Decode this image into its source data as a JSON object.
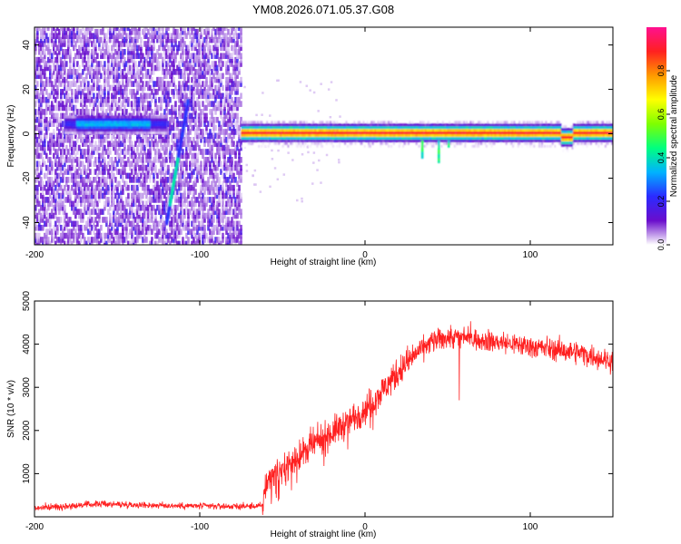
{
  "figure": {
    "title": "YM08.2026.071.05.37.G08"
  },
  "chart_data": [
    {
      "type": "heatmap",
      "xlabel": "Height of straight line (km)",
      "ylabel": "Frequency (Hz)",
      "xlim": [
        -200,
        150
      ],
      "ylim": [
        -50,
        48
      ],
      "xticks": [
        -200,
        -100,
        0,
        100
      ],
      "yticks": [
        -40,
        -20,
        0,
        20,
        40
      ],
      "colorbar": {
        "label": "Normalized spectral amplitude",
        "range": [
          0,
          1
        ],
        "ticks": [
          0.0,
          0.2,
          0.4,
          0.6,
          0.8
        ],
        "colormap": [
          "#ffffff",
          "#6a0dcc",
          "#2b2bff",
          "#00b2ff",
          "#00ff80",
          "#7fff00",
          "#ffff00",
          "#ff9900",
          "#ff2020",
          "#ff1090"
        ]
      },
      "features": [
        {
          "x_range": [
            -200,
            -75
          ],
          "frequency": 5,
          "amplitude": 0.25
        },
        {
          "x_range": [
            -175,
            -130
          ],
          "frequency": 5,
          "amplitude": 0.35
        },
        {
          "x_range": [
            -120,
            -107
          ],
          "frequency_range": [
            -40,
            15
          ],
          "amplitude": 0.4
        },
        {
          "x_range": [
            -75,
            150
          ],
          "frequency": 1,
          "amplitude": 0.9
        }
      ]
    },
    {
      "type": "line",
      "xlabel": "Height of straight line (km)",
      "ylabel": "SNR (10 * v/v)",
      "xlim": [
        -200,
        150
      ],
      "ylim": [
        0,
        5000
      ],
      "xticks": [
        -200,
        -100,
        0,
        100
      ],
      "yticks": [
        1000,
        2000,
        3000,
        4000,
        5000
      ],
      "color": "#ff2020",
      "series": [
        {
          "x": [
            -200,
            -180,
            -160,
            -140,
            -120,
            -100,
            -80,
            -62,
            -60,
            -50,
            -40,
            -30,
            -20,
            -10,
            0,
            10,
            20,
            30,
            40,
            50,
            60,
            70,
            80,
            90,
            100,
            110,
            120,
            130,
            140,
            150
          ],
          "values": [
            200,
            250,
            300,
            280,
            260,
            250,
            240,
            250,
            800,
            1100,
            1400,
            1700,
            1950,
            2200,
            2500,
            2900,
            3350,
            3750,
            4050,
            4150,
            4150,
            4100,
            4050,
            4000,
            3950,
            3900,
            3850,
            3800,
            3700,
            3600
          ]
        }
      ]
    }
  ]
}
